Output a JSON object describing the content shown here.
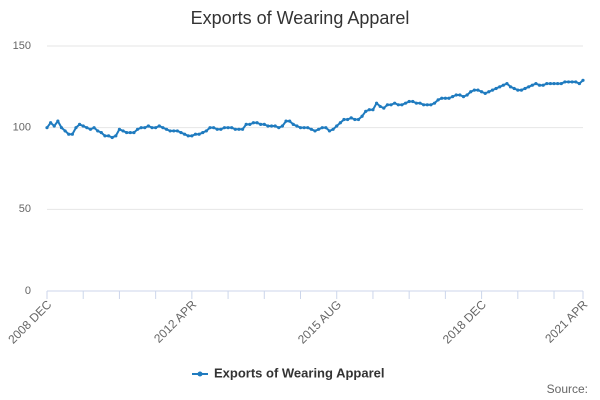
{
  "chart_data": {
    "type": "line",
    "title": "Exports of Wearing Apparel",
    "source": "Source:",
    "categories": [
      "2008 DEC",
      null,
      null,
      null,
      null,
      null,
      null,
      null,
      null,
      null,
      null,
      null,
      null,
      null,
      null,
      null,
      null,
      null,
      null,
      null,
      null,
      null,
      null,
      null,
      null,
      null,
      null,
      null,
      null,
      null,
      null,
      null,
      null,
      null,
      null,
      null,
      null,
      null,
      null,
      null,
      "2012 APR",
      null,
      null,
      null,
      null,
      null,
      null,
      null,
      null,
      null,
      null,
      null,
      null,
      null,
      null,
      null,
      null,
      null,
      null,
      null,
      null,
      null,
      null,
      null,
      null,
      null,
      null,
      null,
      null,
      null,
      null,
      null,
      null,
      null,
      null,
      null,
      null,
      null,
      null,
      null,
      "2015 AUG",
      null,
      null,
      null,
      null,
      null,
      null,
      null,
      null,
      null,
      null,
      null,
      null,
      null,
      null,
      null,
      null,
      null,
      null,
      null,
      null,
      null,
      null,
      null,
      null,
      null,
      null,
      null,
      null,
      null,
      null,
      null,
      null,
      null,
      null,
      null,
      null,
      null,
      null,
      null,
      "2018 DEC",
      null,
      null,
      null,
      null,
      null,
      null,
      null,
      null,
      null,
      null,
      null,
      null,
      null,
      null,
      null,
      null,
      null,
      null,
      null,
      null,
      null,
      null,
      null,
      null,
      null,
      null,
      null,
      "2021 APR"
    ],
    "series": [
      {
        "name": "Exports of Wearing Apparel",
        "color": "#1f7bbf",
        "values": [
          100,
          103,
          101,
          104,
          100,
          98,
          96,
          96,
          100,
          102,
          101,
          100,
          99,
          100,
          98,
          97,
          95,
          95,
          94,
          95,
          99,
          98,
          97,
          97,
          97,
          99,
          100,
          100,
          101,
          100,
          100,
          101,
          100,
          99,
          98,
          98,
          98,
          97,
          96,
          95,
          95,
          96,
          96,
          97,
          98,
          100,
          100,
          99,
          99,
          100,
          100,
          100,
          99,
          99,
          99,
          102,
          102,
          103,
          103,
          102,
          102,
          101,
          101,
          101,
          100,
          101,
          104,
          104,
          102,
          101,
          100,
          100,
          100,
          99,
          98,
          99,
          100,
          100,
          98,
          99,
          101,
          103,
          105,
          105,
          106,
          105,
          105,
          107,
          110,
          111,
          111,
          115,
          113,
          112,
          114,
          114,
          115,
          114,
          114,
          115,
          116,
          116,
          115,
          115,
          114,
          114,
          114,
          115,
          117,
          118,
          118,
          118,
          119,
          120,
          120,
          119,
          120,
          122,
          123,
          123,
          122,
          121,
          122,
          123,
          124,
          125,
          126,
          127,
          125,
          124,
          123,
          123,
          124,
          125,
          126,
          127,
          126,
          126,
          127,
          127,
          127,
          127,
          127,
          128,
          128,
          128,
          128,
          127,
          129
        ]
      }
    ],
    "ylim": [
      0,
      150
    ],
    "yticks": [
      0,
      50,
      100,
      150
    ],
    "grid": true
  }
}
